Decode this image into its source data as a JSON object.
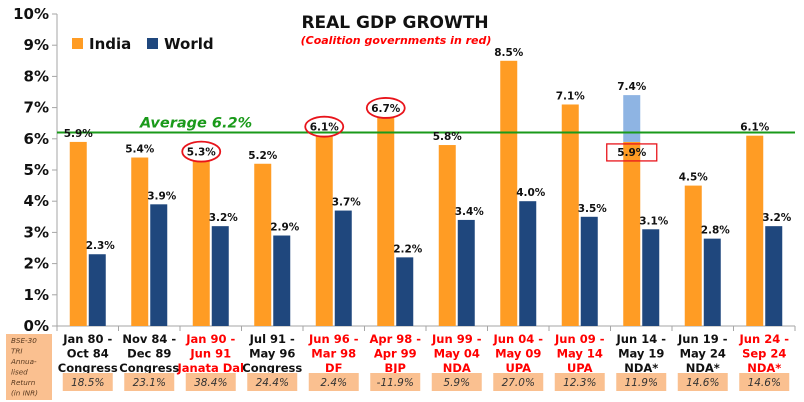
{
  "chart_data": {
    "type": "bar",
    "title": "REAL GDP GROWTH",
    "subtitle": "(Coalition governments in red)",
    "xlabel": "",
    "ylabel": "",
    "ylim": [
      0,
      10
    ],
    "yticks": [
      "0%",
      "1%",
      "2%",
      "3%",
      "4%",
      "5%",
      "6%",
      "7%",
      "8%",
      "9%",
      "10%"
    ],
    "grid": false,
    "legend_position": "top-left",
    "categories": [
      {
        "lines": [
          "Jan 80 -",
          "Oct 84",
          "Congress"
        ],
        "coalition": false
      },
      {
        "lines": [
          "Nov 84 -",
          "Dec 89",
          "Congress"
        ],
        "coalition": false
      },
      {
        "lines": [
          "Jan 90 -",
          "Jun 91",
          "Janata Dal"
        ],
        "coalition": true
      },
      {
        "lines": [
          "Jul 91 -",
          "May 96",
          "Congress"
        ],
        "coalition": false
      },
      {
        "lines": [
          "Jun 96 -",
          "Mar 98",
          "DF"
        ],
        "coalition": true
      },
      {
        "lines": [
          "Apr 98 -",
          "Apr 99",
          "BJP"
        ],
        "coalition": true
      },
      {
        "lines": [
          "Jun 99 -",
          "May 04",
          "NDA"
        ],
        "coalition": true
      },
      {
        "lines": [
          "Jun 04 -",
          "May 09",
          "UPA"
        ],
        "coalition": true
      },
      {
        "lines": [
          "Jun 09 -",
          "May 14",
          "UPA"
        ],
        "coalition": true
      },
      {
        "lines": [
          "Jun 14 -",
          "May 19",
          "NDA*"
        ],
        "coalition": false
      },
      {
        "lines": [
          "Jun 19 -",
          "May 24",
          "NDA*"
        ],
        "coalition": false
      },
      {
        "lines": [
          "Jun 24 -",
          "Sep 24",
          "NDA*"
        ],
        "coalition": true
      }
    ],
    "series": [
      {
        "name": "India",
        "color": "#ff9c24",
        "values": [
          5.9,
          5.4,
          5.3,
          5.2,
          6.1,
          6.7,
          5.8,
          8.5,
          7.1,
          5.9,
          4.5,
          6.1
        ],
        "labels": [
          "5.9%",
          "5.4%",
          "5.3%",
          "5.2%",
          "6.1%",
          "6.7%",
          "5.8%",
          "8.5%",
          "7.1%",
          "5.9%",
          "4.5%",
          "6.1%"
        ]
      },
      {
        "name": "World",
        "color": "#1f477d",
        "values": [
          2.3,
          3.9,
          3.2,
          2.9,
          3.7,
          2.2,
          3.4,
          4.0,
          3.5,
          3.1,
          2.8,
          3.2
        ],
        "labels": [
          "2.3%",
          "3.9%",
          "3.2%",
          "2.9%",
          "3.7%",
          "2.2%",
          "3.4%",
          "4.0%",
          "3.5%",
          "3.1%",
          "2.8%",
          "3.2%"
        ]
      }
    ],
    "extension": {
      "category_index": 9,
      "from": 5.9,
      "to": 7.4,
      "label": "7.4%",
      "color": "#8eb4e3",
      "boxed_label_index": 9
    },
    "circled_india_labels": [
      2,
      4,
      5
    ],
    "average_line": {
      "value": 6.2,
      "label": "Average 6.2%",
      "color": "#1a9a1a"
    },
    "returns_row": {
      "header": [
        "BSE-30",
        "TRI",
        "Annua-",
        "lised",
        "Return",
        "(in INR)"
      ],
      "values": [
        "18.5%",
        "23.1%",
        "38.4%",
        "24.4%",
        "2.4%",
        "-11.9%",
        "5.9%",
        "27.0%",
        "12.3%",
        "11.9%",
        "14.6%",
        "14.6%"
      ],
      "fill": "#fac090"
    },
    "colors": {
      "coalition_text": "#ff0000",
      "normal_text": "#111111",
      "circle": "#e8141b"
    }
  }
}
